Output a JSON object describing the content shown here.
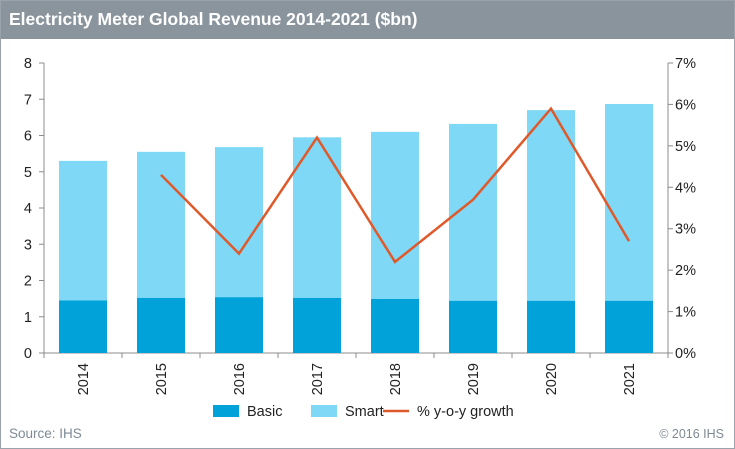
{
  "header": {
    "title": "Electricity Meter Global Revenue 2014-2021 ($bn)"
  },
  "footer": {
    "source": "Source: IHS",
    "copyright": "© 2016 IHS"
  },
  "colors": {
    "header_bg": "#8a949d",
    "basic": "#00a3d9",
    "smart": "#7fd8f6",
    "growth": "#e0592a",
    "axis": "#8c8c8c"
  },
  "chart_data": {
    "type": "bar",
    "stacked": true,
    "title": "Electricity Meter Global Revenue 2014-2021 ($bn)",
    "categories": [
      "2014",
      "2015",
      "2016",
      "2017",
      "2018",
      "2019",
      "2020",
      "2021"
    ],
    "series": [
      {
        "name": "Basic",
        "values": [
          1.45,
          1.52,
          1.54,
          1.52,
          1.49,
          1.44,
          1.44,
          1.44
        ]
      },
      {
        "name": "Smart",
        "values": [
          3.85,
          4.03,
          4.14,
          4.43,
          4.61,
          4.88,
          5.26,
          5.43
        ]
      }
    ],
    "line_series": {
      "name": "% y-o-y growth",
      "axis": "right",
      "values": [
        null,
        4.3,
        2.4,
        5.2,
        2.2,
        3.7,
        5.9,
        2.7
      ]
    },
    "y_left": {
      "min": 0,
      "max": 8,
      "ticks": [
        "0",
        "1",
        "2",
        "3",
        "4",
        "5",
        "6",
        "7",
        "8"
      ]
    },
    "y_right": {
      "min": 0,
      "max": 7,
      "ticks": [
        "0%",
        "1%",
        "2%",
        "3%",
        "4%",
        "5%",
        "6%",
        "7%"
      ]
    },
    "grid": false,
    "legend": {
      "placement": "bottom",
      "entries": [
        "Basic",
        "Smart",
        "% y-o-y growth"
      ]
    },
    "xlabel": "",
    "ylabel": ""
  }
}
